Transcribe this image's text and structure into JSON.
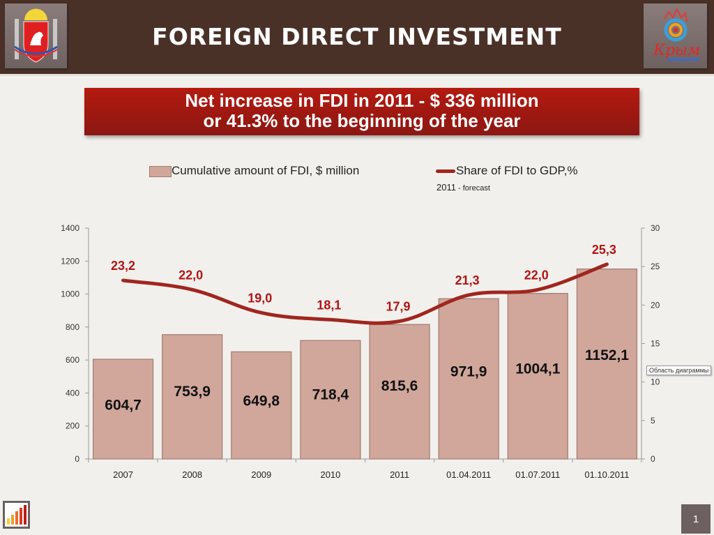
{
  "header": {
    "title": "FOREIGN DIRECT INVESTMENT",
    "logo_left": "coat-of-arms",
    "logo_right_text": "Крым"
  },
  "banner": {
    "line1": "Net increase in FDI in 2011 - $ 336 million",
    "line2": "or 41.3% to the beginning of the year"
  },
  "legend": {
    "series1": "Cumulative amount of FDI, $ million",
    "series2": "Share of FDI to GDP,%",
    "note_year": "2011",
    "note_text": " - forecast"
  },
  "tooltip": "Область диаграммы",
  "page_number": "1",
  "colors": {
    "bar_fill": "#d1a79b",
    "bar_stroke": "#a07a70",
    "line": "#a0261f",
    "line_label": "#b01515"
  },
  "chart_data": {
    "type": "bar",
    "combo": "bar+line",
    "categories": [
      "2007",
      "2008",
      "2009",
      "2010",
      "2011",
      "01.04.2011",
      "01.07.2011",
      "01.10.2011"
    ],
    "series": [
      {
        "name": "Cumulative amount of FDI, $ million",
        "type": "bar",
        "axis": "left",
        "values": [
          604.7,
          753.9,
          649.8,
          718.4,
          815.6,
          971.9,
          1004.1,
          1152.1
        ],
        "labels": [
          "604,7",
          "753,9",
          "649,8",
          "718,4",
          "815,6",
          "971,9",
          "1004,1",
          "1152,1"
        ]
      },
      {
        "name": "Share of FDI to GDP,%",
        "type": "line",
        "axis": "right",
        "values": [
          23.2,
          22.0,
          19.0,
          18.1,
          17.9,
          21.3,
          22.0,
          25.3
        ],
        "labels": [
          "23,2",
          "22,0",
          "19,0",
          "18,1",
          "17,9",
          "21,3",
          "22,0",
          "25,3"
        ]
      }
    ],
    "y_left": {
      "range": [
        0,
        1400
      ],
      "ticks": [
        "0",
        "200",
        "400",
        "600",
        "800",
        "1000",
        "1200",
        "1400"
      ]
    },
    "y_right": {
      "range": [
        0,
        30
      ],
      "ticks": [
        "0",
        "5",
        "10",
        "15",
        "20",
        "25",
        "30"
      ]
    },
    "grid": false,
    "legend_position": "top"
  }
}
